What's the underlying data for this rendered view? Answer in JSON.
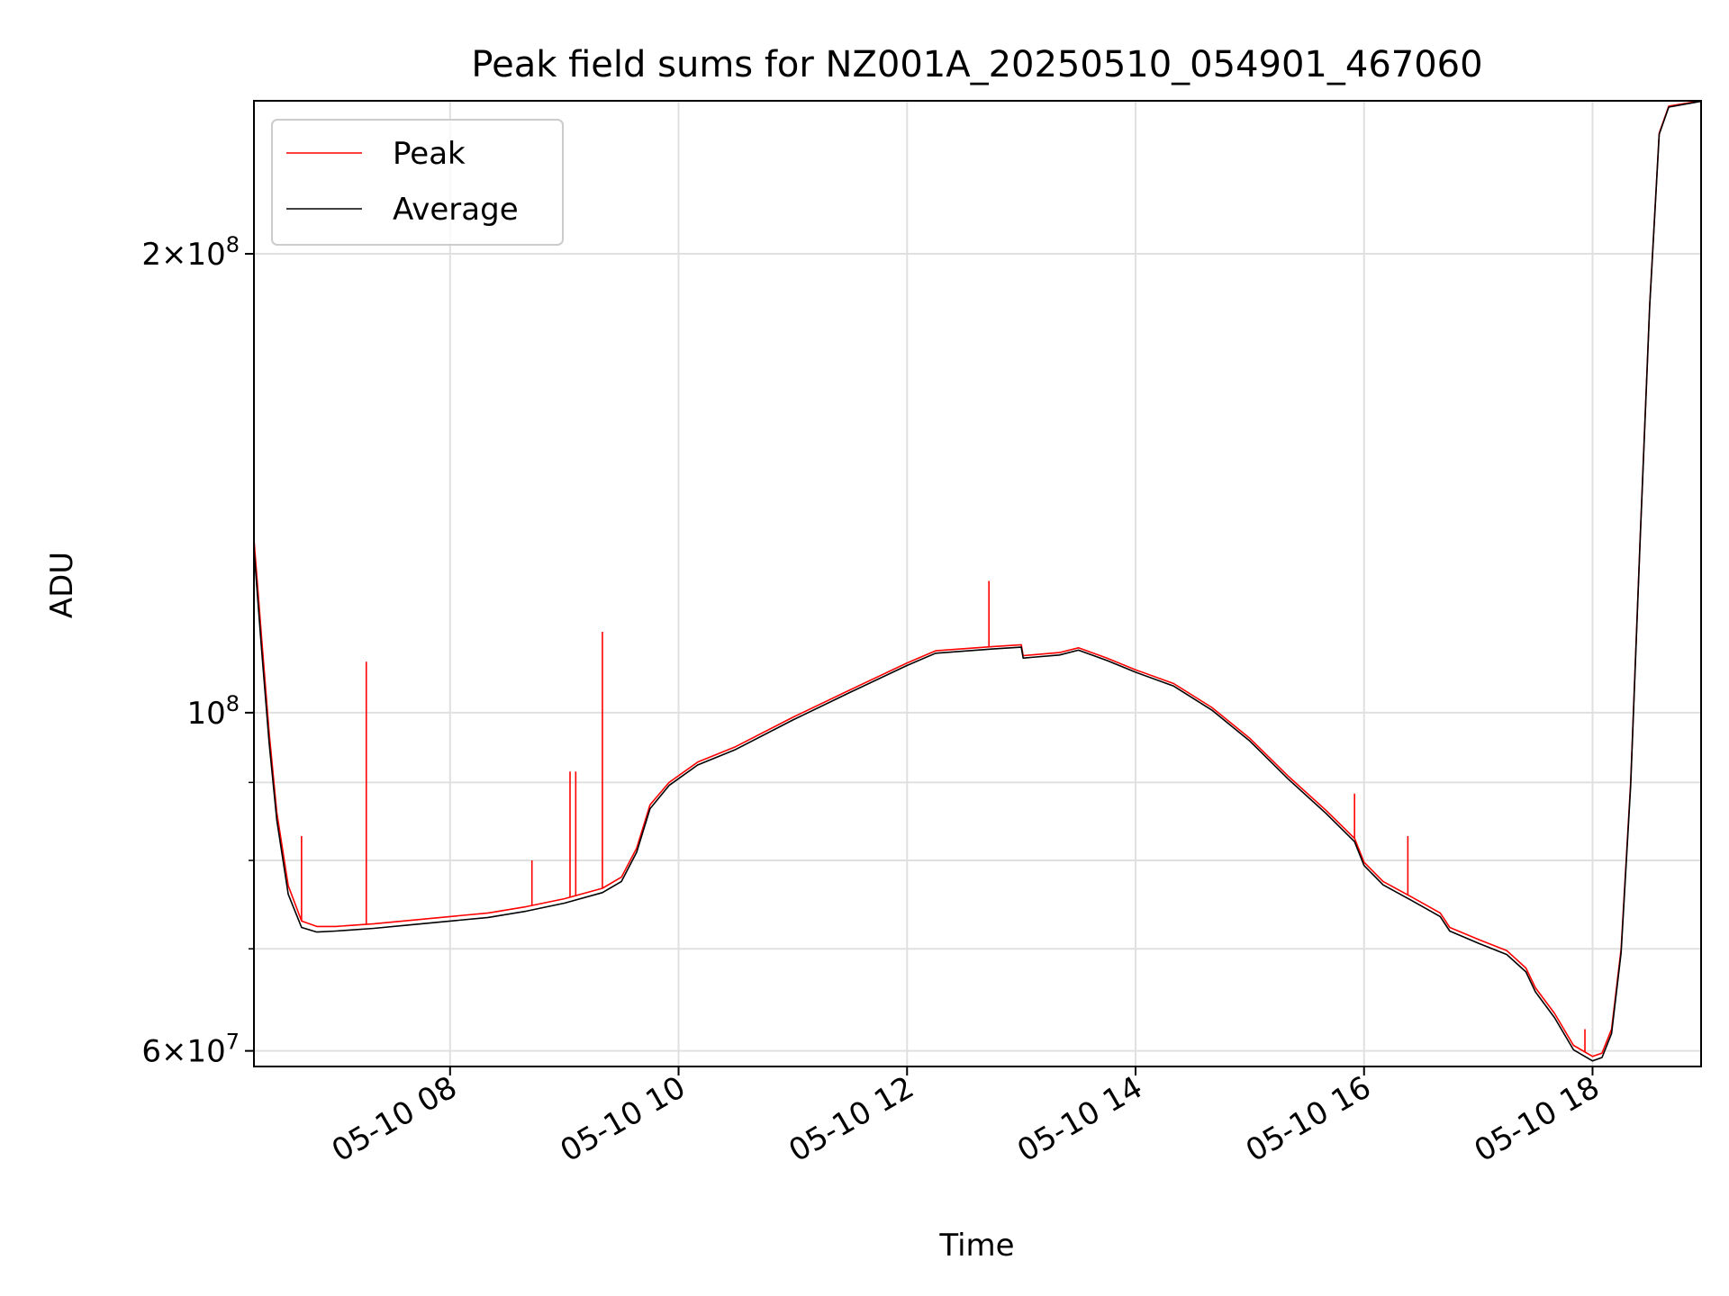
{
  "chart_data": {
    "type": "line",
    "title": "Peak field sums for NZ001A_20250510_054901_467060",
    "xlabel": "Time",
    "ylabel": "ADU",
    "y_scale": "log",
    "xlim": [
      "2025-05-10 06:17",
      "2025-05-10 18:57"
    ],
    "ylim": [
      58600000,
      252000000
    ],
    "x_ticks": [
      "05-10 08",
      "05-10 10",
      "05-10 12",
      "05-10 14",
      "05-10 16",
      "05-10 18"
    ],
    "y_ticks": [
      {
        "value": 60000000,
        "mantissa": "6",
        "base": "10",
        "exponent": "7"
      },
      {
        "value": 100000000,
        "mantissa": "",
        "base": "10",
        "exponent": "8"
      },
      {
        "value": 200000000,
        "mantissa": "2",
        "base": "10",
        "exponent": "8"
      }
    ],
    "minor_y_ticks": [
      70000000,
      80000000,
      90000000
    ],
    "grid": true,
    "legend": {
      "position": "upper-left",
      "entries": [
        "Peak",
        "Average"
      ]
    },
    "series": [
      {
        "name": "Peak",
        "color": "#ff0000",
        "points": [
          [
            "2025-05-10 06:17",
            130000000
          ],
          [
            "2025-05-10 06:21",
            112000000
          ],
          [
            "2025-05-10 06:25",
            97000000
          ],
          [
            "2025-05-10 06:29",
            86000000
          ],
          [
            "2025-05-10 06:35",
            77000000
          ],
          [
            "2025-05-10 06:42",
            73000000
          ],
          [
            "2025-05-10 06:50",
            72400000
          ],
          [
            "2025-05-10 07:00",
            72400000
          ],
          [
            "2025-05-10 07:20",
            72700000
          ],
          [
            "2025-05-10 07:40",
            73100000
          ],
          [
            "2025-05-10 08:00",
            73500000
          ],
          [
            "2025-05-10 08:20",
            73900000
          ],
          [
            "2025-05-10 08:40",
            74600000
          ],
          [
            "2025-05-10 09:00",
            75500000
          ],
          [
            "2025-05-10 09:20",
            76700000
          ],
          [
            "2025-05-10 09:30",
            78000000
          ],
          [
            "2025-05-10 09:38",
            81500000
          ],
          [
            "2025-05-10 09:45",
            87000000
          ],
          [
            "2025-05-10 09:55",
            90000000
          ],
          [
            "2025-05-10 10:10",
            92800000
          ],
          [
            "2025-05-10 10:30",
            95000000
          ],
          [
            "2025-05-10 11:00",
            99300000
          ],
          [
            "2025-05-10 11:30",
            103500000
          ],
          [
            "2025-05-10 12:00",
            107800000
          ],
          [
            "2025-05-10 12:15",
            109800000
          ],
          [
            "2025-05-10 12:45",
            110500000
          ],
          [
            "2025-05-10 13:00",
            110800000
          ],
          [
            "2025-05-10 13:01",
            109000000
          ],
          [
            "2025-05-10 13:20",
            109500000
          ],
          [
            "2025-05-10 13:30",
            110300000
          ],
          [
            "2025-05-10 13:45",
            108600000
          ],
          [
            "2025-05-10 14:00",
            106700000
          ],
          [
            "2025-05-10 14:20",
            104500000
          ],
          [
            "2025-05-10 14:40",
            100800000
          ],
          [
            "2025-05-10 15:00",
            96200000
          ],
          [
            "2025-05-10 15:20",
            90900000
          ],
          [
            "2025-05-10 15:40",
            86300000
          ],
          [
            "2025-05-10 15:55",
            82700000
          ],
          [
            "2025-05-10 16:00",
            79800000
          ],
          [
            "2025-05-10 16:10",
            77500000
          ],
          [
            "2025-05-10 16:25",
            75700000
          ],
          [
            "2025-05-10 16:40",
            73900000
          ],
          [
            "2025-05-10 16:45",
            72300000
          ],
          [
            "2025-05-10 17:00",
            71000000
          ],
          [
            "2025-05-10 17:15",
            69800000
          ],
          [
            "2025-05-10 17:25",
            68000000
          ],
          [
            "2025-05-10 17:30",
            66000000
          ],
          [
            "2025-05-10 17:40",
            63500000
          ],
          [
            "2025-05-10 17:50",
            60500000
          ],
          [
            "2025-05-10 18:00",
            59500000
          ],
          [
            "2025-05-10 18:05",
            59800000
          ],
          [
            "2025-05-10 18:10",
            62000000
          ],
          [
            "2025-05-10 18:15",
            70000000
          ],
          [
            "2025-05-10 18:20",
            90000000
          ],
          [
            "2025-05-10 18:25",
            130000000
          ],
          [
            "2025-05-10 18:30",
            185000000
          ],
          [
            "2025-05-10 18:35",
            240000000
          ],
          [
            "2025-05-10 18:40",
            250000000
          ],
          [
            "2025-05-10 18:57",
            252000000
          ]
        ],
        "spikes": [
          [
            "2025-05-10 06:42",
            83000000
          ],
          [
            "2025-05-10 07:16",
            108000000
          ],
          [
            "2025-05-10 08:43",
            80000000
          ],
          [
            "2025-05-10 09:03",
            91500000
          ],
          [
            "2025-05-10 09:06",
            91500000
          ],
          [
            "2025-05-10 09:20",
            113000000
          ],
          [
            "2025-05-10 12:43",
            122000000
          ],
          [
            "2025-05-10 15:55",
            88500000
          ],
          [
            "2025-05-10 16:23",
            83000000
          ],
          [
            "2025-05-10 17:56",
            62000000
          ]
        ]
      },
      {
        "name": "Average",
        "color": "#000000",
        "points": [
          [
            "2025-05-10 06:17",
            128000000
          ],
          [
            "2025-05-10 06:21",
            110000000
          ],
          [
            "2025-05-10 06:25",
            95500000
          ],
          [
            "2025-05-10 06:29",
            85000000
          ],
          [
            "2025-05-10 06:35",
            76000000
          ],
          [
            "2025-05-10 06:42",
            72300000
          ],
          [
            "2025-05-10 06:50",
            71800000
          ],
          [
            "2025-05-10 07:00",
            71900000
          ],
          [
            "2025-05-10 07:20",
            72200000
          ],
          [
            "2025-05-10 07:40",
            72600000
          ],
          [
            "2025-05-10 08:00",
            73000000
          ],
          [
            "2025-05-10 08:20",
            73400000
          ],
          [
            "2025-05-10 08:40",
            74100000
          ],
          [
            "2025-05-10 09:00",
            75000000
          ],
          [
            "2025-05-10 09:20",
            76200000
          ],
          [
            "2025-05-10 09:30",
            77500000
          ],
          [
            "2025-05-10 09:38",
            81000000
          ],
          [
            "2025-05-10 09:45",
            86500000
          ],
          [
            "2025-05-10 09:55",
            89600000
          ],
          [
            "2025-05-10 10:10",
            92400000
          ],
          [
            "2025-05-10 10:30",
            94600000
          ],
          [
            "2025-05-10 11:00",
            98900000
          ],
          [
            "2025-05-10 11:30",
            103100000
          ],
          [
            "2025-05-10 12:00",
            107400000
          ],
          [
            "2025-05-10 12:15",
            109400000
          ],
          [
            "2025-05-10 12:45",
            110100000
          ],
          [
            "2025-05-10 13:00",
            110400000
          ],
          [
            "2025-05-10 13:01",
            108600000
          ],
          [
            "2025-05-10 13:20",
            109100000
          ],
          [
            "2025-05-10 13:30",
            109900000
          ],
          [
            "2025-05-10 13:45",
            108200000
          ],
          [
            "2025-05-10 14:00",
            106300000
          ],
          [
            "2025-05-10 14:20",
            104100000
          ],
          [
            "2025-05-10 14:40",
            100400000
          ],
          [
            "2025-05-10 15:00",
            95800000
          ],
          [
            "2025-05-10 15:20",
            90500000
          ],
          [
            "2025-05-10 15:40",
            85900000
          ],
          [
            "2025-05-10 15:55",
            82300000
          ],
          [
            "2025-05-10 16:00",
            79400000
          ],
          [
            "2025-05-10 16:10",
            77100000
          ],
          [
            "2025-05-10 16:25",
            75300000
          ],
          [
            "2025-05-10 16:40",
            73500000
          ],
          [
            "2025-05-10 16:45",
            71900000
          ],
          [
            "2025-05-10 17:00",
            70600000
          ],
          [
            "2025-05-10 17:15",
            69400000
          ],
          [
            "2025-05-10 17:25",
            67600000
          ],
          [
            "2025-05-10 17:30",
            65600000
          ],
          [
            "2025-05-10 17:40",
            63100000
          ],
          [
            "2025-05-10 17:50",
            60100000
          ],
          [
            "2025-05-10 18:00",
            59100000
          ],
          [
            "2025-05-10 18:05",
            59400000
          ],
          [
            "2025-05-10 18:10",
            61600000
          ],
          [
            "2025-05-10 18:15",
            69600000
          ],
          [
            "2025-05-10 18:20",
            89600000
          ],
          [
            "2025-05-10 18:25",
            129600000
          ],
          [
            "2025-05-10 18:30",
            184600000
          ],
          [
            "2025-05-10 18:35",
            239600000
          ],
          [
            "2025-05-10 18:40",
            249600000
          ],
          [
            "2025-05-10 18:57",
            251800000
          ]
        ]
      }
    ]
  }
}
